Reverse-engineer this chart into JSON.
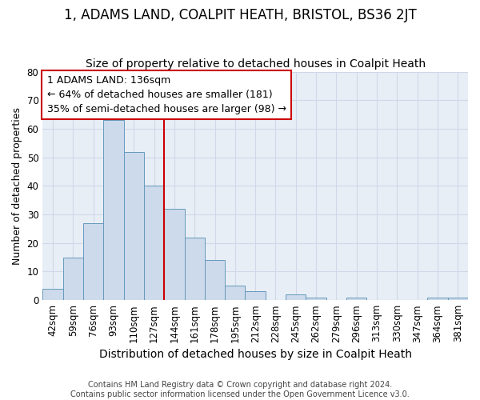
{
  "title": "1, ADAMS LAND, COALPIT HEATH, BRISTOL, BS36 2JT",
  "subtitle": "Size of property relative to detached houses in Coalpit Heath",
  "xlabel": "Distribution of detached houses by size in Coalpit Heath",
  "ylabel": "Number of detached properties",
  "footer_line1": "Contains HM Land Registry data © Crown copyright and database right 2024.",
  "footer_line2": "Contains public sector information licensed under the Open Government Licence v3.0.",
  "categories": [
    "42sqm",
    "59sqm",
    "76sqm",
    "93sqm",
    "110sqm",
    "127sqm",
    "144sqm",
    "161sqm",
    "178sqm",
    "195sqm",
    "212sqm",
    "228sqm",
    "245sqm",
    "262sqm",
    "279sqm",
    "296sqm",
    "313sqm",
    "330sqm",
    "347sqm",
    "364sqm",
    "381sqm"
  ],
  "values": [
    4,
    15,
    27,
    63,
    52,
    40,
    32,
    22,
    14,
    5,
    3,
    0,
    2,
    1,
    0,
    1,
    0,
    0,
    0,
    1,
    1
  ],
  "bar_color": "#ccdaeb",
  "bar_edge_color": "#6699bb",
  "vline_x": 5.5,
  "vline_color": "#cc0000",
  "annotation_text": "1 ADAMS LAND: 136sqm\n← 64% of detached houses are smaller (181)\n35% of semi-detached houses are larger (98) →",
  "annotation_box_color": "#ffffff",
  "annotation_box_edge": "#cc0000",
  "annotation_fontsize": 9,
  "title_fontsize": 12,
  "subtitle_fontsize": 10,
  "xlabel_fontsize": 10,
  "ylabel_fontsize": 9,
  "tick_fontsize": 8.5,
  "ylim": [
    0,
    80
  ],
  "yticks": [
    0,
    10,
    20,
    30,
    40,
    50,
    60,
    70,
    80
  ],
  "background_color": "#ffffff",
  "grid_color": "#d0d8e8",
  "axes_bg_color": "#e8eef6"
}
